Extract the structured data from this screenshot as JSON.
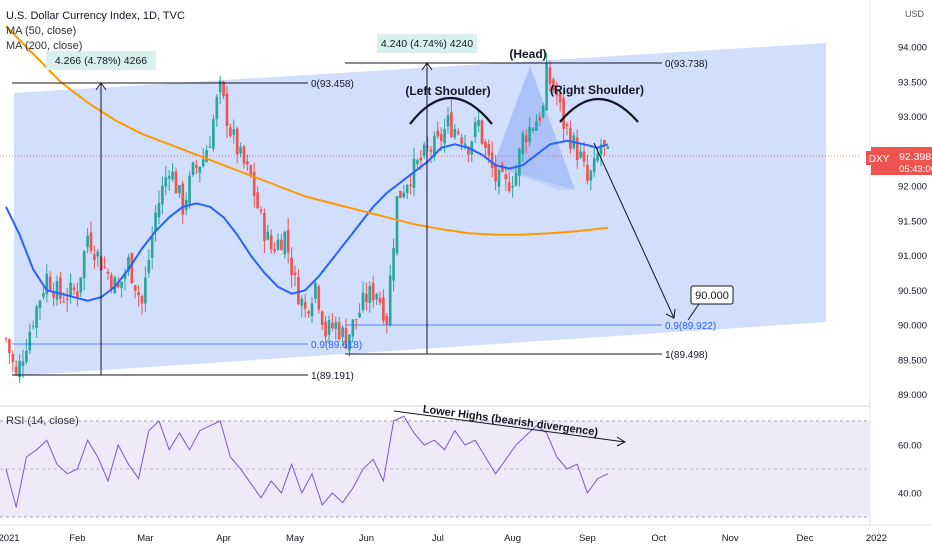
{
  "legend": {
    "symbol": "U.S. Dollar Currency Index, 1D, TVC",
    "ma50": "MA (50, close)",
    "ma200": "MA (200, close)",
    "rsi": "RSI (14, close)"
  },
  "price_axis": {
    "unit": "USD",
    "ticks": [
      "94.000",
      "93.500",
      "93.000",
      "92.500",
      "92.000",
      "91.500",
      "91.000",
      "90.500",
      "90.000",
      "89.500",
      "89.000"
    ]
  },
  "rsi_axis": {
    "ticks": [
      "60.00",
      "40.00"
    ]
  },
  "time_axis": {
    "ticks": [
      "2021",
      "Feb",
      "Mar",
      "Apr",
      "May",
      "Jun",
      "Jul",
      "Aug",
      "Sep",
      "Oct",
      "Nov",
      "Dec",
      "2022"
    ]
  },
  "last_price": {
    "ticker": "DXY",
    "price": "92.398",
    "countdown": "05:43:06"
  },
  "annotations": {
    "measure_left": "4.266 (4.78%) 4266",
    "measure_right": "4.240 (4.74%) 4240",
    "fib_top_left": "0(93.458)",
    "fib_bottom_left": "1(89.191)",
    "fib_09_left": "0.9(89.618)",
    "fib_top_right": "0(93.738)",
    "fib_bottom_right": "1(89.498)",
    "fib_09_right": "0.9(89.922)",
    "head": "(Head)",
    "left_shoulder": "(Left Shoulder)",
    "right_shoulder": "(Right Shoulder)",
    "target": "90.000",
    "rsi_note": "Lower Highs (bearish divergence)"
  },
  "colors": {
    "up": "#26a69a",
    "down": "#ef5350",
    "ma50": "#2962ff",
    "ma200": "#ff9800",
    "channel": "#c9d8fb",
    "rsi": "#7e57c2",
    "price_label": "#ef5350"
  },
  "chart_data": {
    "type": "candlestick",
    "title": "U.S. Dollar Currency Index, 1D, TVC",
    "y_range": [
      88.75,
      94.4
    ],
    "rsi_range": [
      28,
      75
    ],
    "month_x": [
      {
        "label": "2021",
        "x": 0
      },
      {
        "label": "Feb",
        "x": 21
      },
      {
        "label": "Mar",
        "x": 41
      },
      {
        "label": "Apr",
        "x": 64
      },
      {
        "label": "May",
        "x": 85
      },
      {
        "label": "Jun",
        "x": 106
      },
      {
        "label": "Jul",
        "x": 127
      },
      {
        "label": "Aug",
        "x": 149
      },
      {
        "label": "Sep",
        "x": 171
      },
      {
        "label": "Oct",
        "x": 192
      },
      {
        "label": "Nov",
        "x": 213
      },
      {
        "label": "Dec",
        "x": 235
      },
      {
        "label": "2022",
        "x": 256
      }
    ],
    "close_path": [
      [
        0,
        89.8
      ],
      [
        3,
        89.25
      ],
      [
        8,
        90.1
      ],
      [
        12,
        90.7
      ],
      [
        16,
        90.4
      ],
      [
        21,
        90.5
      ],
      [
        24,
        91.3
      ],
      [
        28,
        90.9
      ],
      [
        33,
        90.5
      ],
      [
        36,
        90.9
      ],
      [
        40,
        90.3
      ],
      [
        44,
        91.6
      ],
      [
        48,
        92.3
      ],
      [
        52,
        91.7
      ],
      [
        55,
        92.2
      ],
      [
        58,
        92.4
      ],
      [
        60,
        92.7
      ],
      [
        62,
        93.2
      ],
      [
        63,
        93.38
      ],
      [
        66,
        92.8
      ],
      [
        69,
        92.4
      ],
      [
        72,
        92.1
      ],
      [
        75,
        91.5
      ],
      [
        78,
        91.1
      ],
      [
        82,
        91.3
      ],
      [
        85,
        90.6
      ],
      [
        88,
        90.2
      ],
      [
        91,
        90.6
      ],
      [
        94,
        89.9
      ],
      [
        97,
        90.0
      ],
      [
        100,
        89.8
      ],
      [
        103,
        90.1
      ],
      [
        106,
        90.4
      ],
      [
        109,
        90.5
      ],
      [
        112,
        90.1
      ],
      [
        115,
        91.8
      ],
      [
        118,
        92.1
      ],
      [
        121,
        92.3
      ],
      [
        124,
        92.5
      ],
      [
        127,
        92.6
      ],
      [
        130,
        92.9
      ],
      [
        133,
        92.8
      ],
      [
        136,
        92.6
      ],
      [
        139,
        92.9
      ],
      [
        141,
        92.5
      ],
      [
        144,
        92.1
      ],
      [
        147,
        92.0
      ],
      [
        150,
        92.2
      ],
      [
        152,
        92.7
      ],
      [
        155,
        92.9
      ],
      [
        158,
        93.1
      ],
      [
        159,
        93.6
      ],
      [
        162,
        93.3
      ],
      [
        164,
        92.9
      ],
      [
        166,
        92.7
      ],
      [
        169,
        92.4
      ],
      [
        171,
        92.05
      ],
      [
        173,
        92.25
      ],
      [
        175,
        92.6
      ],
      [
        177,
        92.4
      ]
    ],
    "series": [
      {
        "name": "MA (50, close)",
        "points": [
          [
            0,
            91.7
          ],
          [
            4,
            91.3
          ],
          [
            8,
            90.8
          ],
          [
            12,
            90.5
          ],
          [
            16,
            90.45
          ],
          [
            20,
            90.4
          ],
          [
            24,
            90.35
          ],
          [
            28,
            90.4
          ],
          [
            32,
            90.55
          ],
          [
            36,
            90.8
          ],
          [
            40,
            91.1
          ],
          [
            44,
            91.35
          ],
          [
            48,
            91.55
          ],
          [
            52,
            91.7
          ],
          [
            56,
            91.75
          ],
          [
            60,
            91.7
          ],
          [
            64,
            91.55
          ],
          [
            68,
            91.3
          ],
          [
            72,
            91.0
          ],
          [
            76,
            90.75
          ],
          [
            80,
            90.55
          ],
          [
            84,
            90.45
          ],
          [
            88,
            90.5
          ],
          [
            92,
            90.7
          ],
          [
            96,
            90.95
          ],
          [
            100,
            91.2
          ],
          [
            104,
            91.45
          ],
          [
            108,
            91.7
          ],
          [
            112,
            91.9
          ],
          [
            116,
            92.05
          ],
          [
            120,
            92.2
          ],
          [
            124,
            92.35
          ],
          [
            128,
            92.55
          ],
          [
            132,
            92.6
          ],
          [
            136,
            92.55
          ],
          [
            140,
            92.45
          ],
          [
            144,
            92.3
          ],
          [
            148,
            92.25
          ],
          [
            152,
            92.3
          ],
          [
            156,
            92.45
          ],
          [
            160,
            92.6
          ],
          [
            165,
            92.65
          ],
          [
            170,
            92.6
          ],
          [
            174,
            92.55
          ],
          [
            177,
            92.6
          ]
        ]
      },
      {
        "name": "MA (200, close)",
        "points": [
          [
            0,
            94.3
          ],
          [
            8,
            93.9
          ],
          [
            16,
            93.5
          ],
          [
            24,
            93.2
          ],
          [
            32,
            92.95
          ],
          [
            40,
            92.75
          ],
          [
            48,
            92.6
          ],
          [
            56,
            92.45
          ],
          [
            64,
            92.3
          ],
          [
            72,
            92.15
          ],
          [
            80,
            92.0
          ],
          [
            88,
            91.85
          ],
          [
            96,
            91.75
          ],
          [
            104,
            91.65
          ],
          [
            112,
            91.55
          ],
          [
            120,
            91.45
          ],
          [
            128,
            91.38
          ],
          [
            136,
            91.32
          ],
          [
            144,
            91.3
          ],
          [
            152,
            91.3
          ],
          [
            160,
            91.32
          ],
          [
            168,
            91.35
          ],
          [
            177,
            91.4
          ]
        ]
      }
    ],
    "rsi_path": [
      [
        0,
        50
      ],
      [
        3,
        34
      ],
      [
        6,
        55
      ],
      [
        9,
        58
      ],
      [
        12,
        62
      ],
      [
        15,
        52
      ],
      [
        18,
        48
      ],
      [
        21,
        50
      ],
      [
        24,
        62
      ],
      [
        27,
        55
      ],
      [
        30,
        45
      ],
      [
        33,
        60
      ],
      [
        36,
        52
      ],
      [
        39,
        46
      ],
      [
        42,
        66
      ],
      [
        45,
        70
      ],
      [
        48,
        58
      ],
      [
        51,
        65
      ],
      [
        54,
        58
      ],
      [
        57,
        66
      ],
      [
        60,
        68
      ],
      [
        63,
        70
      ],
      [
        66,
        55
      ],
      [
        69,
        50
      ],
      [
        72,
        44
      ],
      [
        75,
        38
      ],
      [
        78,
        45
      ],
      [
        81,
        40
      ],
      [
        84,
        52
      ],
      [
        87,
        40
      ],
      [
        90,
        48
      ],
      [
        93,
        35
      ],
      [
        96,
        40
      ],
      [
        99,
        36
      ],
      [
        102,
        42
      ],
      [
        105,
        50
      ],
      [
        108,
        54
      ],
      [
        111,
        45
      ],
      [
        114,
        70
      ],
      [
        117,
        72
      ],
      [
        120,
        65
      ],
      [
        123,
        60
      ],
      [
        126,
        62
      ],
      [
        129,
        58
      ],
      [
        132,
        66
      ],
      [
        135,
        60
      ],
      [
        138,
        62
      ],
      [
        141,
        55
      ],
      [
        144,
        48
      ],
      [
        147,
        54
      ],
      [
        150,
        60
      ],
      [
        153,
        64
      ],
      [
        156,
        68
      ],
      [
        159,
        65
      ],
      [
        162,
        55
      ],
      [
        165,
        50
      ],
      [
        168,
        52
      ],
      [
        171,
        40
      ],
      [
        174,
        46
      ],
      [
        177,
        48
      ]
    ]
  }
}
